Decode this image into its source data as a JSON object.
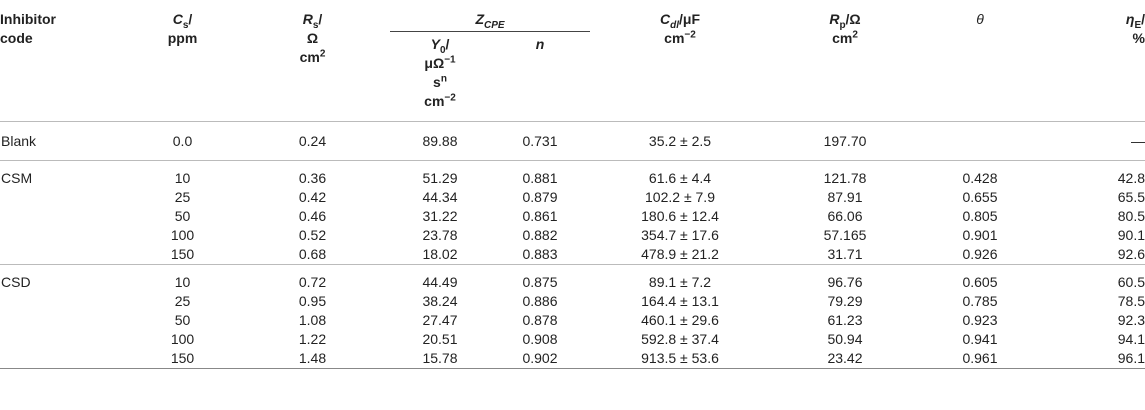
{
  "headers": {
    "inhibitor_line1": "Inhibitor",
    "inhibitor_line2": "code",
    "cs_sym": "C",
    "cs_sub": "s",
    "cs_unit": "/",
    "cs_line2": "ppm",
    "rs_sym": "R",
    "rs_sub": "s",
    "rs_unit": "/",
    "rs_line2": "Ω",
    "rs_line3": "cm",
    "rs_line3_sup": "2",
    "zcpe_sym": "Z",
    "zcpe_sub": "CPE",
    "y0_sym": "Y",
    "y0_sub": "0",
    "y0_unit": "/",
    "y0_line2": "μΩ",
    "y0_line2_sup": "−1",
    "y0_line3": "s",
    "y0_line3_sup": "n",
    "y0_line4": "cm",
    "y0_line4_sup": "−2",
    "n": "n",
    "cdl_sym": "C",
    "cdl_sub": "dl",
    "cdl_unit": "/μF",
    "cdl_line2": "cm",
    "cdl_line2_sup": "−2",
    "rp_sym": "R",
    "rp_sub": "p",
    "rp_unit": "/Ω",
    "rp_line2": "cm",
    "rp_line2_sup": "2",
    "theta": "θ",
    "eta_sym": "η",
    "eta_sub": "E",
    "eta_unit": "/",
    "eta_line2": "%"
  },
  "rows": [
    {
      "code": "Blank",
      "cs": "0.0",
      "rs": "0.24",
      "y0": "89.88",
      "n": "0.731",
      "cdl": "35.2 ± 2.5",
      "rp": "197.70",
      "theta": "",
      "eta": "—"
    },
    {
      "code": "CSM",
      "cs": "10",
      "rs": "0.36",
      "y0": "51.29",
      "n": "0.881",
      "cdl": "61.6 ± 4.4",
      "rp": "121.78",
      "theta": "0.428",
      "eta": "42.8"
    },
    {
      "code": "",
      "cs": "25",
      "rs": "0.42",
      "y0": "44.34",
      "n": "0.879",
      "cdl": "102.2 ± 7.9",
      "rp": "87.91",
      "theta": "0.655",
      "eta": "65.5"
    },
    {
      "code": "",
      "cs": "50",
      "rs": "0.46",
      "y0": "31.22",
      "n": "0.861",
      "cdl": "180.6 ± 12.4",
      "rp": "66.06",
      "theta": "0.805",
      "eta": "80.5"
    },
    {
      "code": "",
      "cs": "100",
      "rs": "0.52",
      "y0": "23.78",
      "n": "0.882",
      "cdl": "354.7 ± 17.6",
      "rp": "57.165",
      "theta": "0.901",
      "eta": "90.1"
    },
    {
      "code": "",
      "cs": "150",
      "rs": "0.68",
      "y0": "18.02",
      "n": "0.883",
      "cdl": "478.9 ± 21.2",
      "rp": "31.71",
      "theta": "0.926",
      "eta": "92.6"
    },
    {
      "code": "CSD",
      "cs": "10",
      "rs": "0.72",
      "y0": "44.49",
      "n": "0.875",
      "cdl": "89.1 ± 7.2",
      "rp": "96.76",
      "theta": "0.605",
      "eta": "60.5"
    },
    {
      "code": "",
      "cs": "25",
      "rs": "0.95",
      "y0": "38.24",
      "n": "0.886",
      "cdl": "164.4 ± 13.1",
      "rp": "79.29",
      "theta": "0.785",
      "eta": "78.5"
    },
    {
      "code": "",
      "cs": "50",
      "rs": "1.08",
      "y0": "27.47",
      "n": "0.878",
      "cdl": "460.1 ± 29.6",
      "rp": "61.23",
      "theta": "0.923",
      "eta": "92.3"
    },
    {
      "code": "",
      "cs": "100",
      "rs": "1.22",
      "y0": "20.51",
      "n": "0.908",
      "cdl": "592.8 ± 37.4",
      "rp": "50.94",
      "theta": "0.941",
      "eta": "94.1"
    },
    {
      "code": "",
      "cs": "150",
      "rs": "1.48",
      "y0": "15.78",
      "n": "0.902",
      "cdl": "913.5 ± 53.6",
      "rp": "23.42",
      "theta": "0.961",
      "eta": "96.1"
    }
  ]
}
